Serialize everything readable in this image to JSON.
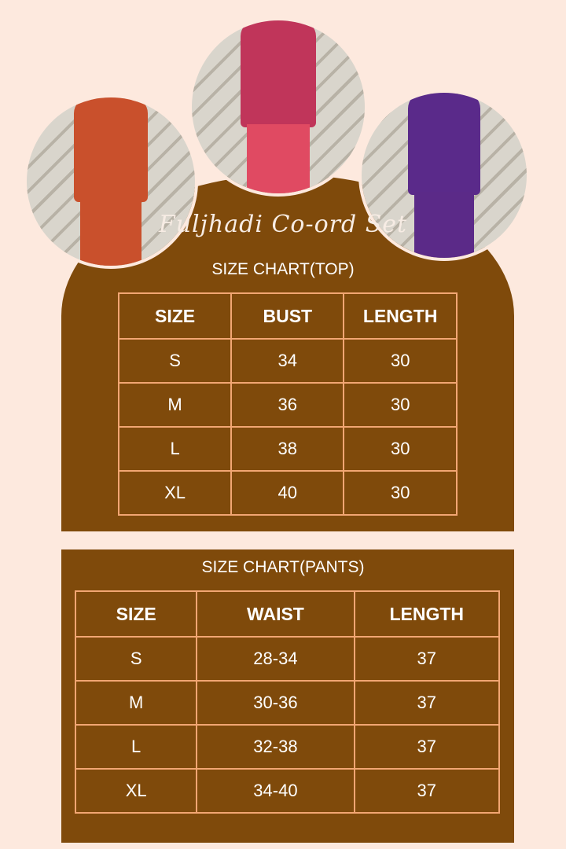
{
  "brand_title": "Fuljhadi Co-ord Set",
  "colors": {
    "background": "#fde9de",
    "panel": "#7f4a0b",
    "border": "#f2a673",
    "text": "#ffffff"
  },
  "photos": [
    {
      "top_color": "#c9502c",
      "pant_color": "#c9502c"
    },
    {
      "top_color": "#c0355a",
      "pant_color": "#e04a62"
    },
    {
      "top_color": "#5a2a8a",
      "pant_color": "#5b2a88"
    }
  ],
  "top_chart": {
    "title": "SIZE CHART(TOP)",
    "headers": [
      "SIZE",
      "BUST",
      "LENGTH"
    ],
    "rows": [
      [
        "S",
        "34",
        "30"
      ],
      [
        "M",
        "36",
        "30"
      ],
      [
        "L",
        "38",
        "30"
      ],
      [
        "XL",
        "40",
        "30"
      ]
    ]
  },
  "pants_chart": {
    "title": "SIZE CHART(PANTS)",
    "headers": [
      "SIZE",
      "WAIST",
      "LENGTH"
    ],
    "rows": [
      [
        "S",
        "28-34",
        "37"
      ],
      [
        "M",
        "30-36",
        "37"
      ],
      [
        "L",
        "32-38",
        "37"
      ],
      [
        "XL",
        "34-40",
        "37"
      ]
    ]
  }
}
